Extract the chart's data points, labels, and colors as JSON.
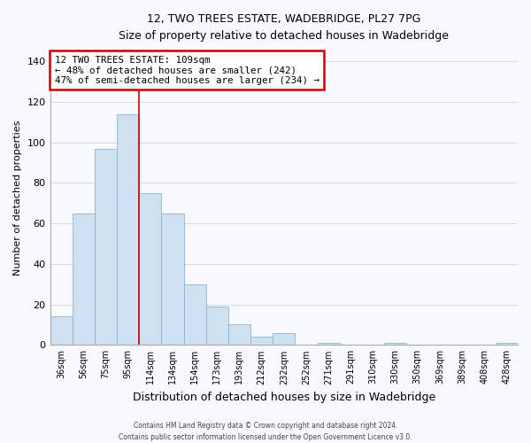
{
  "title": "12, TWO TREES ESTATE, WADEBRIDGE, PL27 7PG",
  "subtitle": "Size of property relative to detached houses in Wadebridge",
  "xlabel": "Distribution of detached houses by size in Wadebridge",
  "ylabel": "Number of detached properties",
  "bar_labels": [
    "36sqm",
    "56sqm",
    "75sqm",
    "95sqm",
    "114sqm",
    "134sqm",
    "154sqm",
    "173sqm",
    "193sqm",
    "212sqm",
    "232sqm",
    "252sqm",
    "271sqm",
    "291sqm",
    "310sqm",
    "330sqm",
    "350sqm",
    "369sqm",
    "389sqm",
    "408sqm",
    "428sqm"
  ],
  "bar_values": [
    14,
    65,
    97,
    114,
    75,
    65,
    30,
    19,
    10,
    4,
    6,
    0,
    1,
    0,
    0,
    1,
    0,
    0,
    0,
    0,
    1
  ],
  "bar_color": "#cfe0f0",
  "bar_edge_color": "#8ab4d4",
  "vline_color": "#cc0000",
  "annotation_title": "12 TWO TREES ESTATE: 109sqm",
  "annotation_line1": "← 48% of detached houses are smaller (242)",
  "annotation_line2": "47% of semi-detached houses are larger (234) →",
  "annotation_box_color": "#ffffff",
  "annotation_box_edge": "#cc0000",
  "ylim": [
    0,
    145
  ],
  "yticks": [
    0,
    20,
    40,
    60,
    80,
    100,
    120,
    140
  ],
  "footer_line1": "Contains HM Land Registry data © Crown copyright and database right 2024.",
  "footer_line2": "Contains public sector information licensed under the Open Government Licence v3.0.",
  "bg_color": "#f8f8ff"
}
